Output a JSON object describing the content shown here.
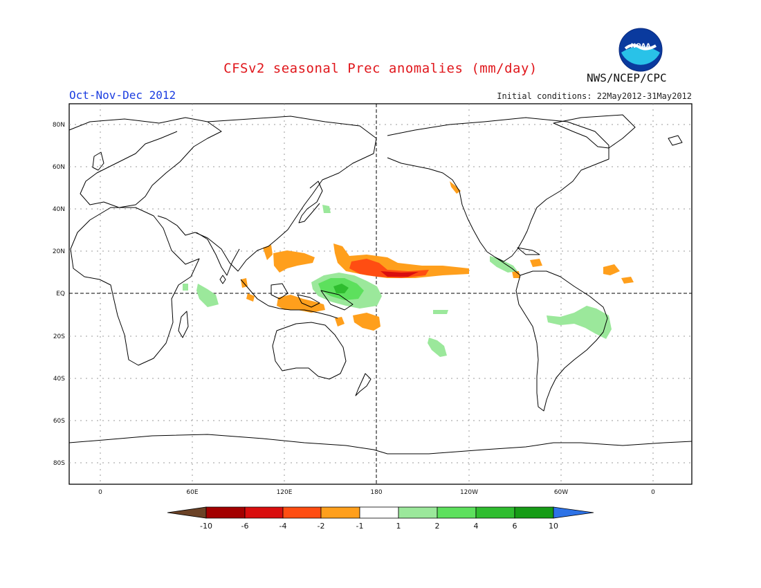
{
  "header": {
    "title": "CFSv2 seasonal Prec anomalies (mm/day)",
    "season": "Oct-Nov-Dec 2012",
    "initial_conditions": "Initial conditions: 22May2012-31May2012",
    "agency": "NWS/NCEP/CPC",
    "logo_text": "NOAA"
  },
  "map": {
    "lon_labels": [
      "0",
      "60E",
      "120E",
      "180",
      "120W",
      "60W",
      "0"
    ],
    "lat_labels": [
      "80N",
      "60N",
      "40N",
      "20N",
      "EQ",
      "20S",
      "40S",
      "60S",
      "80S"
    ]
  },
  "colorbar": {
    "labels": [
      "-10",
      "-6",
      "-4",
      "-2",
      "-1",
      "1",
      "2",
      "4",
      "6",
      "10"
    ],
    "colors": [
      "#6b4226",
      "#a30000",
      "#d90e0e",
      "#ff4d12",
      "#ff9f1c",
      "#ffffff",
      "#9be89b",
      "#5de05d",
      "#2fbd2f",
      "#169c16",
      "#2d72e6"
    ]
  },
  "colors": {
    "title": "#e0161b",
    "season": "#1b3de0",
    "dry_light": "#ff9f1c",
    "dry_mid": "#ff4d12",
    "wet_light": "#9be89b",
    "wet_mid": "#5de05d",
    "wet_dark": "#2fbd2f"
  }
}
